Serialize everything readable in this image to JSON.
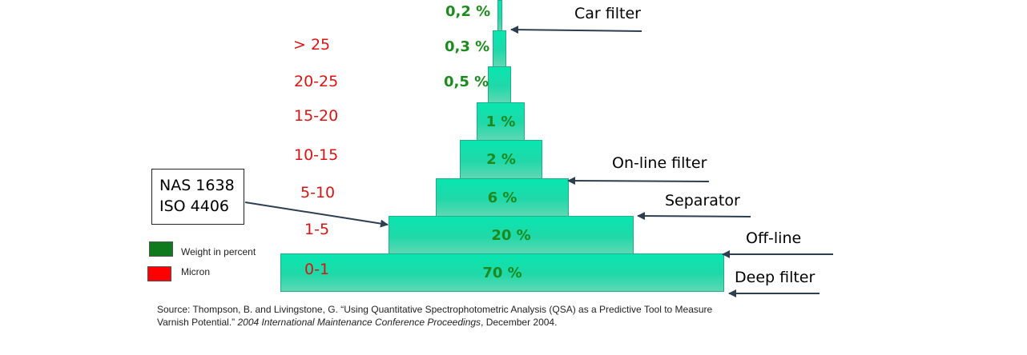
{
  "diagram": {
    "tiers": [
      {
        "weight": "70 %",
        "micron": "0-1"
      },
      {
        "weight": "20 %",
        "micron": "1-5"
      },
      {
        "weight": "6 %",
        "micron": "5-10"
      },
      {
        "weight": "2 %",
        "micron": "10-15"
      },
      {
        "weight": "1 %",
        "micron": "15-20"
      },
      {
        "weight": "0,5 %",
        "micron": "20-25"
      },
      {
        "weight": "0,3 %",
        "micron": "> 25"
      },
      {
        "weight": "0,2 %",
        "micron": ""
      }
    ],
    "filters": [
      "Car filter",
      "On-line filter",
      "Separator",
      "Off-line",
      "Deep filter"
    ],
    "standards": [
      "NAS 1638",
      "ISO 4406"
    ],
    "legend": [
      {
        "label": "Weight in percent",
        "color": "#0f7a1c"
      },
      {
        "label": "Micron",
        "color": "#ff0000"
      }
    ],
    "colors": {
      "tier_fill": "#1fe0ac",
      "weight_text": "#1e8a1e",
      "micron_text": "#d81414",
      "arrow": "#2c3e50"
    },
    "source": {
      "prefix": "Source: Thompson, B. and Livingstone, G. “Using Quantitative Spectrophotometric Analysis (QSA) as a Predictive Tool to Measure",
      "line2_start": "Varnish Potential.” ",
      "italic": "2004 International Maintenance Conference Proceedings",
      "line2_end": ", December 2004."
    }
  }
}
